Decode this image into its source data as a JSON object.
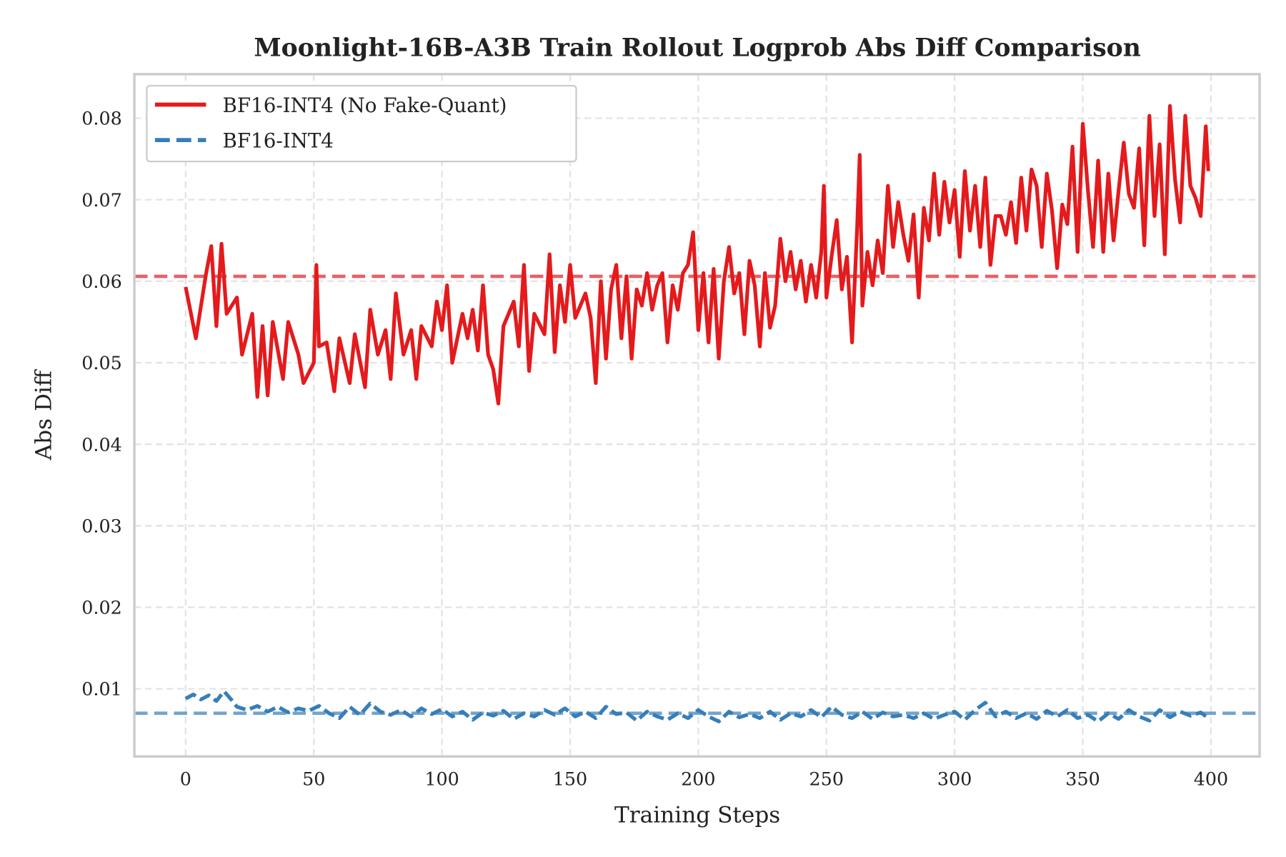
{
  "chart_data": {
    "type": "line",
    "title": "Moonlight-16B-A3B Train Rollout Logprob Abs Diff Comparison",
    "xlabel": "Training Steps",
    "ylabel": "Abs Diff",
    "xlim": [
      -20,
      419
    ],
    "ylim": [
      0.0017,
      0.0854
    ],
    "xticks": [
      "0",
      "50",
      "100",
      "150",
      "200",
      "250",
      "300",
      "350",
      "400"
    ],
    "yticks": [
      "0.01",
      "0.02",
      "0.03",
      "0.04",
      "0.05",
      "0.06",
      "0.07",
      "0.08"
    ],
    "grid": true,
    "legend_position": "top-left",
    "series": [
      {
        "name": "BF16-INT4 (No Fake-Quant)",
        "color": "#e41a1c",
        "style": "solid",
        "mean_line": 0.0606,
        "x": [
          0,
          4,
          8,
          10,
          12,
          14,
          16,
          20,
          22,
          26,
          28,
          30,
          32,
          34,
          38,
          40,
          44,
          46,
          50,
          51,
          52,
          55,
          58,
          60,
          64,
          66,
          70,
          72,
          75,
          78,
          80,
          82,
          85,
          88,
          90,
          92,
          96,
          98,
          100,
          102,
          104,
          108,
          110,
          112,
          114,
          116,
          118,
          120,
          122,
          124,
          128,
          130,
          132,
          134,
          136,
          140,
          142,
          144,
          146,
          148,
          150,
          152,
          156,
          158,
          160,
          162,
          164,
          166,
          168,
          170,
          172,
          174,
          176,
          178,
          180,
          182,
          184,
          186,
          188,
          190,
          192,
          194,
          196,
          198,
          200,
          202,
          204,
          206,
          208,
          210,
          212,
          214,
          216,
          218,
          220,
          222,
          224,
          226,
          228,
          230,
          232,
          234,
          236,
          238,
          240,
          242,
          244,
          246,
          248,
          249,
          250,
          252,
          254,
          256,
          258,
          260,
          262,
          263,
          264,
          266,
          268,
          270,
          272,
          274,
          276,
          278,
          280,
          282,
          284,
          286,
          288,
          290,
          292,
          294,
          296,
          298,
          300,
          302,
          304,
          306,
          308,
          310,
          312,
          314,
          316,
          318,
          320,
          322,
          324,
          326,
          328,
          330,
          332,
          334,
          336,
          338,
          340,
          342,
          344,
          346,
          348,
          350,
          352,
          354,
          356,
          358,
          360,
          362,
          364,
          366,
          368,
          370,
          372,
          374,
          376,
          378,
          380,
          382,
          384,
          386,
          388,
          390,
          392,
          394,
          396,
          398,
          399
        ],
        "y": [
          0.0593,
          0.053,
          0.061,
          0.0643,
          0.0545,
          0.0646,
          0.056,
          0.058,
          0.051,
          0.056,
          0.0458,
          0.0545,
          0.046,
          0.055,
          0.048,
          0.055,
          0.051,
          0.0475,
          0.05,
          0.062,
          0.052,
          0.0525,
          0.0465,
          0.053,
          0.0475,
          0.0535,
          0.047,
          0.0565,
          0.051,
          0.054,
          0.048,
          0.0585,
          0.051,
          0.054,
          0.048,
          0.0545,
          0.052,
          0.0575,
          0.054,
          0.0595,
          0.05,
          0.056,
          0.053,
          0.0565,
          0.0515,
          0.0595,
          0.051,
          0.0492,
          0.045,
          0.0545,
          0.0575,
          0.052,
          0.062,
          0.049,
          0.056,
          0.0535,
          0.0633,
          0.0513,
          0.0595,
          0.055,
          0.062,
          0.0555,
          0.0585,
          0.0555,
          0.0475,
          0.06,
          0.0505,
          0.059,
          0.062,
          0.053,
          0.0606,
          0.0505,
          0.059,
          0.057,
          0.061,
          0.0565,
          0.0595,
          0.061,
          0.0525,
          0.0595,
          0.0565,
          0.061,
          0.062,
          0.066,
          0.054,
          0.061,
          0.0525,
          0.0615,
          0.0505,
          0.06,
          0.0642,
          0.0585,
          0.061,
          0.0535,
          0.0625,
          0.0595,
          0.052,
          0.061,
          0.0543,
          0.057,
          0.0652,
          0.06,
          0.0636,
          0.059,
          0.0625,
          0.0575,
          0.062,
          0.058,
          0.0636,
          0.0717,
          0.058,
          0.063,
          0.0675,
          0.059,
          0.063,
          0.0525,
          0.0667,
          0.0755,
          0.057,
          0.0636,
          0.0595,
          0.065,
          0.061,
          0.0717,
          0.0642,
          0.0697,
          0.0657,
          0.0625,
          0.0682,
          0.058,
          0.069,
          0.065,
          0.0732,
          0.0657,
          0.0722,
          0.0672,
          0.0712,
          0.063,
          0.0735,
          0.0662,
          0.0717,
          0.0642,
          0.0727,
          0.062,
          0.068,
          0.068,
          0.0657,
          0.0697,
          0.0647,
          0.0727,
          0.0662,
          0.0737,
          0.0717,
          0.0642,
          0.0732,
          0.0687,
          0.0616,
          0.0694,
          0.067,
          0.0765,
          0.0636,
          0.0793,
          0.0712,
          0.0642,
          0.0748,
          0.0636,
          0.0732,
          0.065,
          0.0712,
          0.077,
          0.0707,
          0.069,
          0.0763,
          0.0644,
          0.0803,
          0.068,
          0.0768,
          0.0633,
          0.0815,
          0.0725,
          0.0672,
          0.0803,
          0.0717,
          0.0702,
          0.068,
          0.079,
          0.0735
        ]
      },
      {
        "name": "BF16-INT4",
        "color": "#377eb8",
        "style": "dashed",
        "mean_line": 0.007,
        "x": [
          0,
          3,
          6,
          9,
          12,
          15,
          18,
          20,
          24,
          28,
          32,
          36,
          40,
          44,
          48,
          52,
          56,
          60,
          64,
          68,
          72,
          76,
          80,
          84,
          88,
          92,
          96,
          100,
          104,
          108,
          112,
          116,
          120,
          124,
          128,
          132,
          136,
          140,
          144,
          148,
          152,
          156,
          160,
          164,
          168,
          172,
          176,
          180,
          184,
          188,
          192,
          196,
          200,
          204,
          208,
          212,
          216,
          220,
          224,
          228,
          232,
          236,
          240,
          244,
          248,
          252,
          256,
          260,
          264,
          268,
          272,
          276,
          280,
          284,
          288,
          292,
          296,
          300,
          304,
          308,
          312,
          316,
          320,
          324,
          328,
          332,
          336,
          340,
          344,
          348,
          352,
          356,
          360,
          364,
          368,
          372,
          376,
          380,
          384,
          388,
          392,
          396,
          399
        ],
        "y": [
          0.0088,
          0.0093,
          0.0087,
          0.0092,
          0.0085,
          0.0097,
          0.0086,
          0.0078,
          0.0074,
          0.0079,
          0.0072,
          0.0078,
          0.0071,
          0.0076,
          0.0073,
          0.0079,
          0.007,
          0.0064,
          0.0078,
          0.0068,
          0.0082,
          0.0072,
          0.0068,
          0.0074,
          0.0066,
          0.0076,
          0.0069,
          0.0075,
          0.0066,
          0.0072,
          0.0062,
          0.0071,
          0.0067,
          0.0073,
          0.0063,
          0.007,
          0.0066,
          0.0074,
          0.0068,
          0.0076,
          0.0066,
          0.0072,
          0.0064,
          0.0078,
          0.0069,
          0.0071,
          0.0061,
          0.0072,
          0.0066,
          0.0062,
          0.007,
          0.0064,
          0.0074,
          0.0066,
          0.006,
          0.0072,
          0.0065,
          0.0069,
          0.0064,
          0.0072,
          0.0062,
          0.007,
          0.0066,
          0.0074,
          0.0065,
          0.0078,
          0.0068,
          0.0064,
          0.0072,
          0.0063,
          0.0071,
          0.0066,
          0.0068,
          0.0064,
          0.007,
          0.0063,
          0.0068,
          0.0072,
          0.0062,
          0.0074,
          0.0083,
          0.0066,
          0.0072,
          0.0064,
          0.007,
          0.0063,
          0.0073,
          0.0066,
          0.0074,
          0.0064,
          0.0068,
          0.006,
          0.007,
          0.0063,
          0.0074,
          0.0066,
          0.0061,
          0.0074,
          0.0065,
          0.0072,
          0.0067,
          0.0071,
          0.0064
        ]
      }
    ]
  }
}
